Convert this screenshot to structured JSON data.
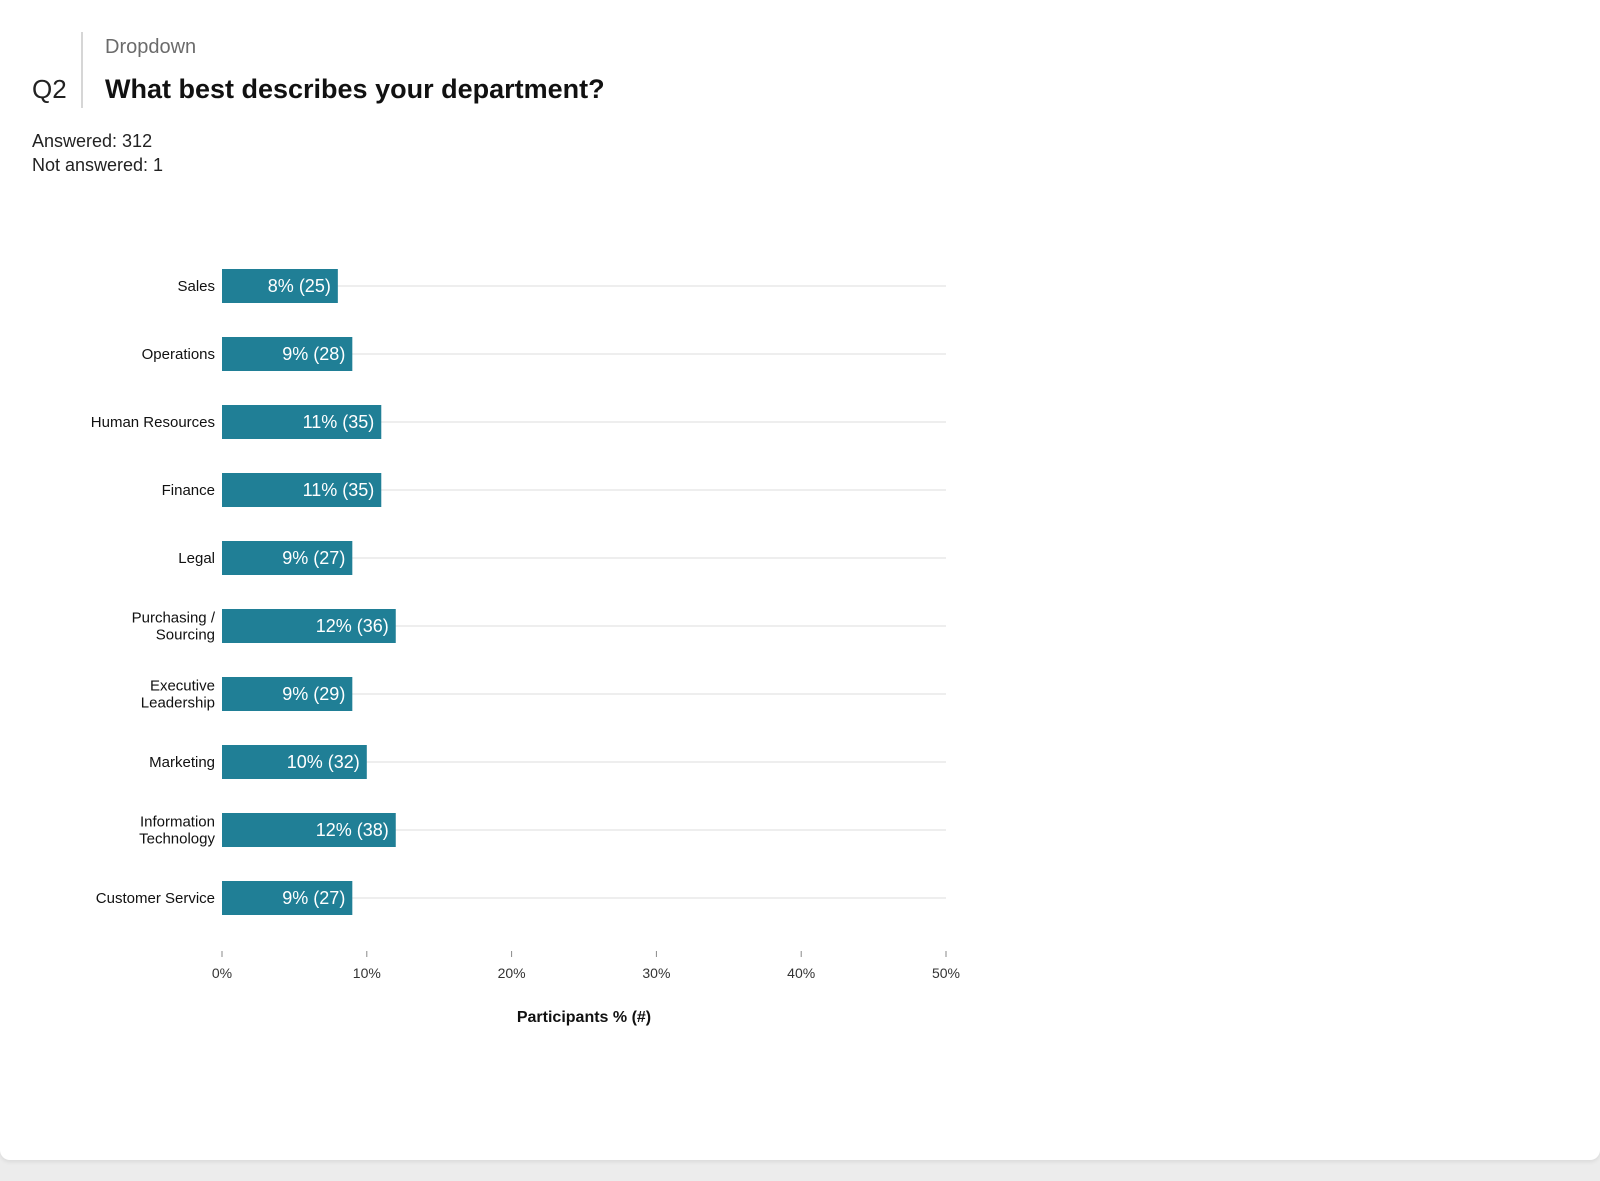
{
  "question": {
    "number": "Q2",
    "type": "Dropdown",
    "title": "What best describes your department?"
  },
  "stats": {
    "answered": "Answered: 312",
    "not_answered": "Not answered: 1"
  },
  "colors": {
    "bar": "#207f96",
    "gridline": "#dddddd",
    "tick": "#888888"
  },
  "chart_data": {
    "type": "bar",
    "orientation": "horizontal",
    "categories": [
      [
        "Sales"
      ],
      [
        "Operations"
      ],
      [
        "Human Resources"
      ],
      [
        "Finance"
      ],
      [
        "Legal"
      ],
      [
        "Purchasing /",
        "Sourcing"
      ],
      [
        "Executive",
        "Leadership"
      ],
      [
        "Marketing"
      ],
      [
        "Information",
        "Technology"
      ],
      [
        "Customer Service"
      ]
    ],
    "values": [
      8,
      9,
      11,
      11,
      9,
      12,
      9,
      10,
      12,
      9
    ],
    "counts": [
      25,
      28,
      35,
      35,
      27,
      36,
      29,
      32,
      38,
      27
    ],
    "data_labels": [
      "8% (25)",
      "9% (28)",
      "11% (35)",
      "11% (35)",
      "9% (27)",
      "12% (36)",
      "9% (29)",
      "10% (32)",
      "12% (38)",
      "9% (27)"
    ],
    "xlim": [
      0,
      50
    ],
    "xticks": [
      0,
      10,
      20,
      30,
      40,
      50
    ],
    "xtick_labels": [
      "0%",
      "10%",
      "20%",
      "30%",
      "40%",
      "50%"
    ],
    "xlabel": "Participants % (#)",
    "ylabel": "",
    "grid": true
  }
}
